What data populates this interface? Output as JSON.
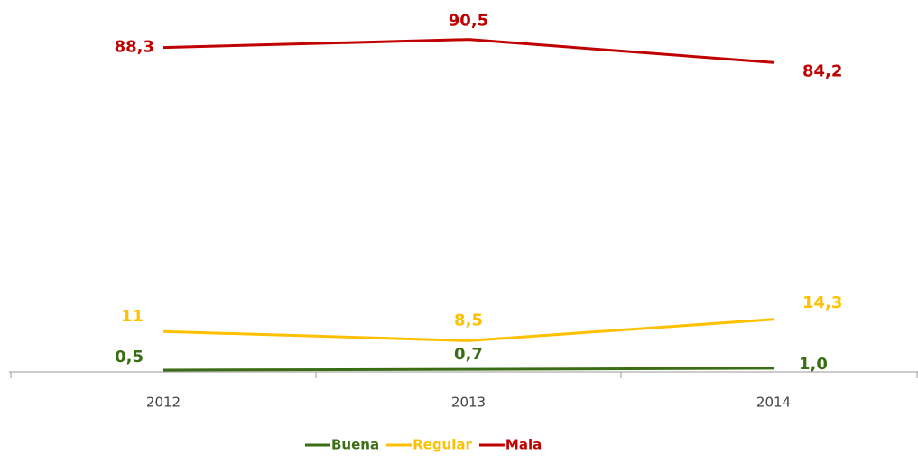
{
  "chart_data": {
    "type": "line",
    "categories": [
      "2012",
      "2013",
      "2014"
    ],
    "series": [
      {
        "name": "Buena",
        "color": "#3b6e14",
        "values": [
          0.5,
          0.7,
          1.0
        ],
        "value_labels": [
          "0,5",
          "0,7",
          "1,0"
        ]
      },
      {
        "name": "Regular",
        "color": "#ffc000",
        "values": [
          11,
          8.5,
          14.3
        ],
        "value_labels": [
          "11",
          "8,5",
          "14,3"
        ]
      },
      {
        "name": "Mala",
        "color": "#c00000",
        "values": [
          88.3,
          90.5,
          84.2
        ],
        "value_labels": [
          "88,3",
          "90,5",
          "84,2"
        ]
      }
    ],
    "ylim": [
      0,
      100
    ],
    "legend": "bottom"
  }
}
